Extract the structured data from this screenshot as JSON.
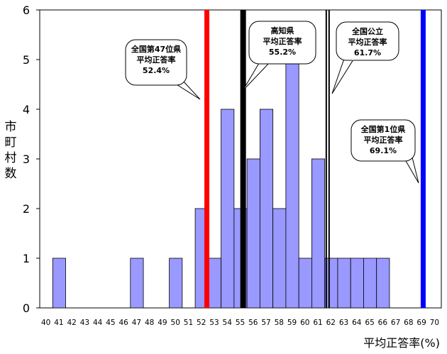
{
  "chart_data": {
    "type": "bar",
    "title": "",
    "xlabel": "平均正答率(%)",
    "ylabel_chars": [
      "市",
      "町",
      "村",
      "数"
    ],
    "ylim": [
      0,
      6
    ],
    "yticks": [
      "0",
      "1",
      "2",
      "3",
      "4",
      "5",
      "6"
    ],
    "categories": [
      "40",
      "41",
      "42",
      "43",
      "44",
      "45",
      "46",
      "47",
      "48",
      "49",
      "50",
      "51",
      "52",
      "53",
      "54",
      "55",
      "56",
      "57",
      "58",
      "59",
      "60",
      "61",
      "62",
      "63",
      "64",
      "65",
      "66",
      "67",
      "68",
      "69",
      "70"
    ],
    "values": [
      0,
      1,
      0,
      0,
      0,
      0,
      0,
      1,
      0,
      0,
      1,
      0,
      2,
      1,
      4,
      2,
      3,
      4,
      2,
      5,
      1,
      3,
      1,
      1,
      1,
      1,
      1,
      0,
      0,
      0,
      0
    ],
    "grid": false,
    "reference_lines": [
      {
        "label_lines": [
          "全国第47位県",
          "平均正答率",
          "52.4%"
        ],
        "value": 52.4,
        "color": "#ff0000"
      },
      {
        "label_lines": [
          "高知県",
          "平均正答率",
          "55.2%"
        ],
        "value": 55.2,
        "color": "#000000"
      },
      {
        "label_lines": [
          "全国公立",
          "平均正答率",
          "61.7%"
        ],
        "value": 61.7,
        "color": "#000000"
      },
      {
        "label_lines": [
          "全国第1位県",
          "平均正答率",
          "69.1%"
        ],
        "value": 69.1,
        "color": "#0000ff"
      }
    ],
    "bar_color": "#9999ff"
  }
}
